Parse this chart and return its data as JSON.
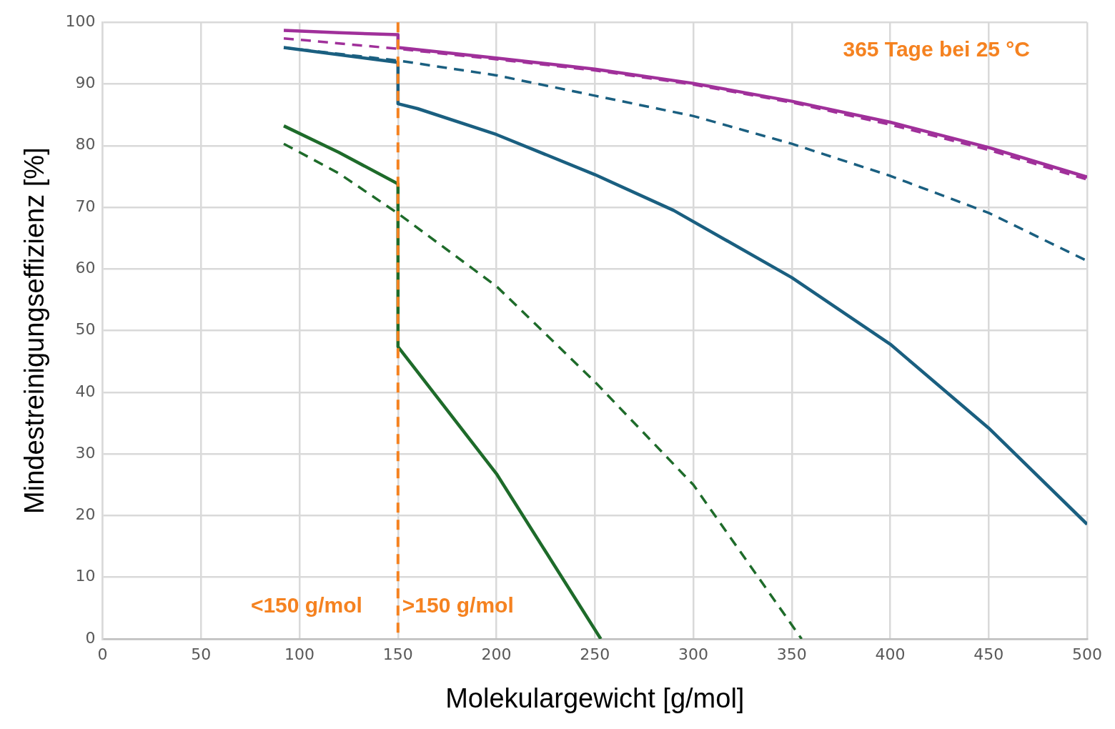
{
  "chart_data": {
    "type": "line",
    "xlabel": "Molekulargewicht [g/mol]",
    "ylabel": "Mindestreinigungseffizienz [%]",
    "xlim": [
      0,
      500
    ],
    "xticks": [
      0,
      50,
      100,
      150,
      200,
      250,
      300,
      350,
      400,
      450,
      500
    ],
    "ylim": [
      0,
      100
    ],
    "yticks": [
      0,
      10,
      20,
      30,
      40,
      50,
      60,
      70,
      80,
      90,
      100
    ],
    "grid": true,
    "legend": false,
    "marker": "none",
    "series": [
      {
        "color": "#a0309a",
        "line_style": "solid",
        "x": [
          92,
          120,
          150,
          150,
          200,
          250,
          300,
          350,
          400,
          450,
          500
        ],
        "values": [
          98.7,
          98.3,
          98.0,
          95.9,
          94.2,
          92.4,
          90.1,
          87.2,
          83.8,
          79.7,
          74.9
        ]
      },
      {
        "color": "#a0309a",
        "line_style": "dashed",
        "x": [
          92,
          150,
          200,
          250,
          300,
          350,
          400,
          450,
          500
        ],
        "values": [
          97.4,
          95.7,
          94.0,
          92.2,
          89.9,
          87.0,
          83.4,
          79.3,
          74.5
        ]
      },
      {
        "color": "#1a5f80",
        "line_style": "dashed",
        "x": [
          92,
          150,
          200,
          250,
          300,
          350,
          400,
          450,
          500
        ],
        "values": [
          95.9,
          93.8,
          91.4,
          88.1,
          84.8,
          80.3,
          75.1,
          69.1,
          61.3
        ]
      },
      {
        "color": "#1a5f80",
        "line_style": "solid",
        "x": [
          92,
          150,
          150,
          160,
          200,
          250,
          290,
          350,
          400,
          450,
          500
        ],
        "values": [
          95.9,
          93.5,
          86.8,
          86.0,
          81.8,
          75.3,
          69.5,
          58.6,
          47.8,
          34.2,
          18.6
        ]
      },
      {
        "color": "#1e6b2a",
        "line_style": "solid",
        "x": [
          92,
          120,
          150,
          150,
          200,
          253
        ],
        "values": [
          83.2,
          78.9,
          73.8,
          47.4,
          26.8,
          0
        ]
      },
      {
        "color": "#1e6b2a",
        "line_style": "dashed",
        "x": [
          92,
          120,
          150,
          200,
          250,
          300,
          355
        ],
        "values": [
          80.3,
          75.5,
          69.0,
          57.2,
          41.7,
          25.0,
          0
        ]
      }
    ],
    "ref_lines": [
      {
        "axis": "x",
        "value": 150,
        "color": "#f58220",
        "line_style": "dashed"
      }
    ],
    "annotations": [
      "365 Tage bei 25 °C",
      "<150 g/mol",
      ">150 g/mol"
    ]
  }
}
